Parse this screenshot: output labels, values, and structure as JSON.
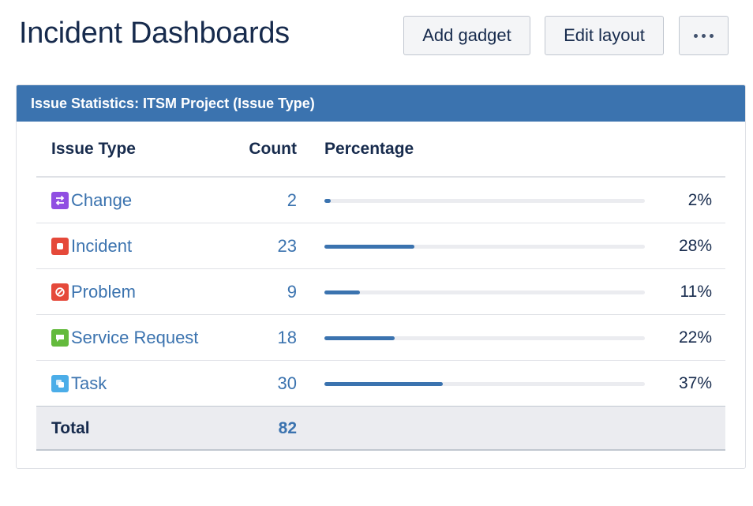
{
  "page": {
    "title": "Incident Dashboards",
    "buttons": {
      "add_gadget": "Add gadget",
      "edit_layout": "Edit layout",
      "more_icon": "more-horizontal-icon"
    }
  },
  "gadget": {
    "title": "Issue Statistics: ITSM Project (Issue Type)",
    "header_color": "#3b73af",
    "columns": {
      "type": "Issue Type",
      "count": "Count",
      "percentage": "Percentage"
    },
    "rows": [
      {
        "type": "Change",
        "icon": "change-type-icon",
        "icon_color": "#904ee2",
        "count": "2",
        "percentage": "2%",
        "fraction": 0.02
      },
      {
        "type": "Incident",
        "icon": "incident-type-icon",
        "icon_color": "#e5493a",
        "count": "23",
        "percentage": "28%",
        "fraction": 0.28
      },
      {
        "type": "Problem",
        "icon": "problem-type-icon",
        "icon_color": "#e5493a",
        "count": "9",
        "percentage": "11%",
        "fraction": 0.11
      },
      {
        "type": "Service Request",
        "icon": "service-request-type-icon",
        "icon_color": "#63ba3c",
        "count": "18",
        "percentage": "22%",
        "fraction": 0.22
      },
      {
        "type": "Task",
        "icon": "task-type-icon",
        "icon_color": "#4bade8",
        "count": "30",
        "percentage": "37%",
        "fraction": 0.37
      }
    ],
    "total": {
      "label": "Total",
      "count": "82"
    }
  }
}
